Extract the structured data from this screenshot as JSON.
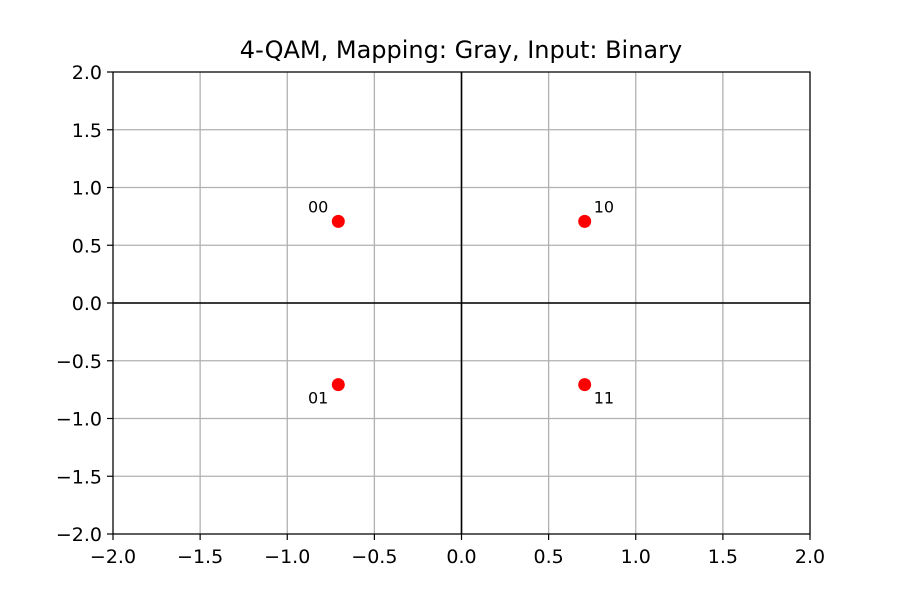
{
  "chart_data": {
    "type": "scatter",
    "title": "4-QAM, Mapping: Gray, Input: Binary",
    "xlabel": "",
    "ylabel": "",
    "xlim": [
      -2.0,
      2.0
    ],
    "ylim": [
      -2.0,
      2.0
    ],
    "grid": true,
    "x_ticks": [
      -2.0,
      -1.5,
      -1.0,
      -0.5,
      0.0,
      0.5,
      1.0,
      1.5,
      2.0
    ],
    "y_ticks": [
      -2.0,
      -1.5,
      -1.0,
      -0.5,
      0.0,
      0.5,
      1.0,
      1.5,
      2.0
    ],
    "x_tick_labels": [
      "−2.0",
      "−1.5",
      "−1.0",
      "−0.5",
      "0.0",
      "0.5",
      "1.0",
      "1.5",
      "2.0"
    ],
    "y_tick_labels": [
      "−2.0",
      "−1.5",
      "−1.0",
      "−0.5",
      "0.0",
      "0.5",
      "1.0",
      "1.5",
      "2.0"
    ],
    "points": [
      {
        "x": -0.707,
        "y": 0.707,
        "label": "00"
      },
      {
        "x": 0.707,
        "y": 0.707,
        "label": "10"
      },
      {
        "x": -0.707,
        "y": -0.707,
        "label": "01"
      },
      {
        "x": 0.707,
        "y": -0.707,
        "label": "11"
      }
    ],
    "colors": {
      "point": "#ff0000",
      "grid": "#b0b0b0",
      "axis_line": "#000000",
      "frame": "#000000"
    }
  }
}
